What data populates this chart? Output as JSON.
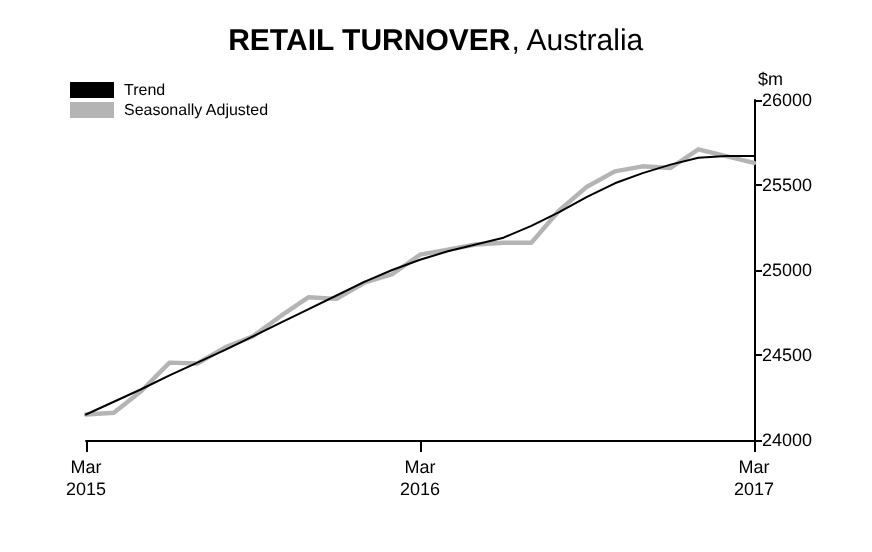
{
  "chart_data": {
    "type": "line",
    "title": "RETAIL TURNOVER, Australia",
    "ylabel": "$m",
    "categories": [
      "Mar 2015",
      null,
      null,
      null,
      null,
      null,
      null,
      null,
      null,
      null,
      null,
      null,
      "Mar 2016",
      null,
      null,
      null,
      null,
      null,
      null,
      null,
      null,
      null,
      null,
      null,
      "Mar 2017"
    ],
    "series": [
      {
        "name": "Trend",
        "color": "#000000",
        "values": [
          24150,
          24225,
          24300,
          24380,
          24455,
          24530,
          24610,
          24690,
          24770,
          24850,
          24930,
          25000,
          25060,
          25110,
          25150,
          25190,
          25260,
          25340,
          25430,
          25510,
          25570,
          25620,
          25660,
          25670,
          25670
        ]
      },
      {
        "name": "Seasonally Adjusted",
        "color": "#b4b4b4",
        "values": [
          24150,
          24160,
          24290,
          24455,
          24450,
          24545,
          24610,
          24730,
          24840,
          24830,
          24925,
          24975,
          25090,
          25120,
          25150,
          25160,
          25160,
          25350,
          25490,
          25580,
          25610,
          25600,
          25710,
          25670,
          25630
        ]
      }
    ],
    "ylim": [
      24000,
      26000
    ],
    "yticks": [
      24000,
      24500,
      25000,
      25500,
      26000
    ],
    "grid": false,
    "legend": "top left",
    "marker": "none",
    "line_style": "solid"
  }
}
